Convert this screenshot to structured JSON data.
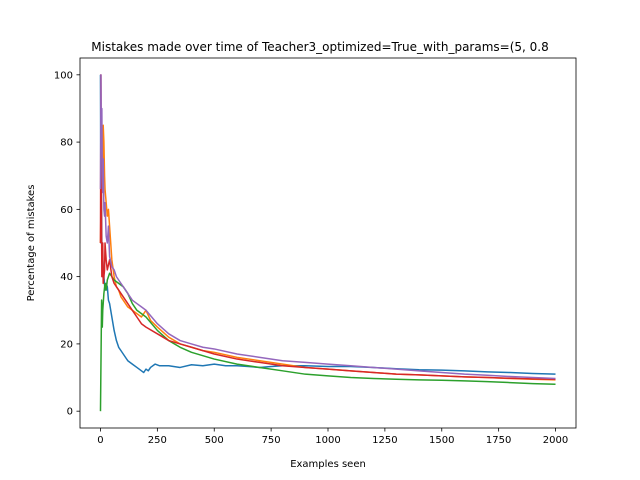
{
  "chart_data": {
    "type": "line",
    "title": "Mistakes made over time of Teacher3_optimized=True_with_params=(5, 0.8",
    "xlabel": "Examples seen",
    "ylabel": "Percentage of mistakes",
    "xlim": [
      -90,
      2090
    ],
    "ylim": [
      -5,
      105
    ],
    "xticks": [
      0,
      250,
      500,
      750,
      1000,
      1250,
      1500,
      1750,
      2000
    ],
    "yticks": [
      0,
      20,
      40,
      60,
      80,
      100
    ],
    "grid": false,
    "series": [
      {
        "color": "#1f77b4",
        "points": [
          [
            0,
            100
          ],
          [
            2,
            50
          ],
          [
            4,
            66
          ],
          [
            6,
            50
          ],
          [
            8,
            40
          ],
          [
            10,
            45
          ],
          [
            15,
            40
          ],
          [
            20,
            36
          ],
          [
            25,
            38
          ],
          [
            30,
            37
          ],
          [
            35,
            33
          ],
          [
            40,
            32
          ],
          [
            50,
            28
          ],
          [
            60,
            24
          ],
          [
            70,
            21
          ],
          [
            80,
            19
          ],
          [
            90,
            18
          ],
          [
            100,
            17
          ],
          [
            120,
            15
          ],
          [
            140,
            14
          ],
          [
            160,
            13
          ],
          [
            180,
            12
          ],
          [
            190,
            11.5
          ],
          [
            200,
            12.5
          ],
          [
            210,
            12
          ],
          [
            220,
            13
          ],
          [
            240,
            14
          ],
          [
            260,
            13.5
          ],
          [
            300,
            13.5
          ],
          [
            350,
            13
          ],
          [
            400,
            13.8
          ],
          [
            450,
            13.5
          ],
          [
            500,
            14
          ],
          [
            550,
            13.5
          ],
          [
            600,
            13.5
          ],
          [
            650,
            13.3
          ],
          [
            700,
            13
          ],
          [
            750,
            13.3
          ],
          [
            800,
            13.5
          ],
          [
            900,
            13.5
          ],
          [
            1000,
            13.3
          ],
          [
            1100,
            13.3
          ],
          [
            1200,
            13
          ],
          [
            1300,
            12.6
          ],
          [
            1400,
            12.3
          ],
          [
            1500,
            12.2
          ],
          [
            1600,
            12
          ],
          [
            1700,
            11.7
          ],
          [
            1800,
            11.5
          ],
          [
            1900,
            11.2
          ],
          [
            2000,
            11
          ]
        ]
      },
      {
        "color": "#ff7f0e",
        "points": [
          [
            0,
            50
          ],
          [
            3,
            66
          ],
          [
            5,
            75
          ],
          [
            8,
            80
          ],
          [
            10,
            72
          ],
          [
            12,
            85
          ],
          [
            15,
            80
          ],
          [
            18,
            70
          ],
          [
            20,
            66
          ],
          [
            25,
            62
          ],
          [
            30,
            58
          ],
          [
            35,
            60
          ],
          [
            40,
            55
          ],
          [
            50,
            45
          ],
          [
            60,
            40
          ],
          [
            70,
            37
          ],
          [
            80,
            36
          ],
          [
            90,
            34
          ],
          [
            100,
            33
          ],
          [
            120,
            31
          ],
          [
            140,
            30
          ],
          [
            160,
            29
          ],
          [
            180,
            28
          ],
          [
            200,
            30
          ],
          [
            220,
            27
          ],
          [
            250,
            25
          ],
          [
            300,
            22
          ],
          [
            350,
            20
          ],
          [
            400,
            19
          ],
          [
            450,
            18
          ],
          [
            500,
            17.5
          ],
          [
            600,
            16
          ],
          [
            700,
            15
          ],
          [
            800,
            14
          ],
          [
            900,
            13
          ],
          [
            1000,
            12.5
          ],
          [
            1100,
            12
          ],
          [
            1200,
            11.5
          ],
          [
            1300,
            11
          ],
          [
            1400,
            10.8
          ],
          [
            1500,
            10.5
          ],
          [
            1600,
            10.2
          ],
          [
            1700,
            10
          ],
          [
            1800,
            9.7
          ],
          [
            1900,
            9.5
          ],
          [
            2000,
            9.3
          ]
        ]
      },
      {
        "color": "#2ca02c",
        "points": [
          [
            0,
            0
          ],
          [
            3,
            20
          ],
          [
            5,
            33
          ],
          [
            8,
            25
          ],
          [
            10,
            30
          ],
          [
            15,
            35
          ],
          [
            20,
            38
          ],
          [
            25,
            36
          ],
          [
            30,
            39
          ],
          [
            35,
            40
          ],
          [
            40,
            41
          ],
          [
            50,
            40
          ],
          [
            60,
            39
          ],
          [
            80,
            38
          ],
          [
            100,
            37
          ],
          [
            120,
            35
          ],
          [
            140,
            32
          ],
          [
            160,
            30
          ],
          [
            180,
            29
          ],
          [
            200,
            28
          ],
          [
            250,
            24
          ],
          [
            300,
            21
          ],
          [
            350,
            19
          ],
          [
            400,
            17.5
          ],
          [
            450,
            16.5
          ],
          [
            500,
            15.5
          ],
          [
            600,
            14
          ],
          [
            700,
            13
          ],
          [
            800,
            12
          ],
          [
            900,
            11
          ],
          [
            1000,
            10.5
          ],
          [
            1100,
            10
          ],
          [
            1200,
            9.7
          ],
          [
            1300,
            9.5
          ],
          [
            1400,
            9.3
          ],
          [
            1500,
            9.2
          ],
          [
            1600,
            9
          ],
          [
            1700,
            8.8
          ],
          [
            1800,
            8.5
          ],
          [
            1900,
            8.2
          ],
          [
            2000,
            8
          ]
        ]
      },
      {
        "color": "#d62728",
        "points": [
          [
            0,
            50
          ],
          [
            2,
            100
          ],
          [
            4,
            66
          ],
          [
            6,
            40
          ],
          [
            8,
            45
          ],
          [
            10,
            50
          ],
          [
            12,
            38
          ],
          [
            15,
            40
          ],
          [
            18,
            42
          ],
          [
            20,
            50
          ],
          [
            25,
            45
          ],
          [
            30,
            42
          ],
          [
            40,
            45
          ],
          [
            50,
            40
          ],
          [
            60,
            38
          ],
          [
            70,
            37
          ],
          [
            80,
            36
          ],
          [
            90,
            35
          ],
          [
            100,
            34
          ],
          [
            120,
            32
          ],
          [
            140,
            30
          ],
          [
            160,
            28
          ],
          [
            180,
            26
          ],
          [
            200,
            25
          ],
          [
            250,
            23
          ],
          [
            300,
            21
          ],
          [
            350,
            20
          ],
          [
            400,
            19
          ],
          [
            450,
            18
          ],
          [
            500,
            17
          ],
          [
            600,
            15.5
          ],
          [
            700,
            14.5
          ],
          [
            800,
            13.5
          ],
          [
            900,
            13
          ],
          [
            1000,
            12.5
          ],
          [
            1100,
            12
          ],
          [
            1200,
            11.5
          ],
          [
            1300,
            11
          ],
          [
            1400,
            10.8
          ],
          [
            1500,
            10.5
          ],
          [
            1600,
            10.2
          ],
          [
            1700,
            10
          ],
          [
            1800,
            9.8
          ],
          [
            1900,
            9.6
          ],
          [
            2000,
            9.5
          ]
        ]
      },
      {
        "color": "#9467bd",
        "points": [
          [
            0,
            66
          ],
          [
            2,
            100
          ],
          [
            4,
            80
          ],
          [
            6,
            90
          ],
          [
            8,
            70
          ],
          [
            10,
            65
          ],
          [
            12,
            75
          ],
          [
            15,
            60
          ],
          [
            18,
            58
          ],
          [
            20,
            62
          ],
          [
            25,
            52
          ],
          [
            30,
            50
          ],
          [
            35,
            55
          ],
          [
            40,
            46
          ],
          [
            50,
            43
          ],
          [
            60,
            42
          ],
          [
            70,
            40
          ],
          [
            80,
            39
          ],
          [
            90,
            38
          ],
          [
            100,
            37
          ],
          [
            120,
            35
          ],
          [
            140,
            33
          ],
          [
            160,
            32
          ],
          [
            180,
            31
          ],
          [
            200,
            30
          ],
          [
            250,
            26
          ],
          [
            300,
            23
          ],
          [
            350,
            21
          ],
          [
            400,
            20
          ],
          [
            450,
            19
          ],
          [
            500,
            18.5
          ],
          [
            600,
            17
          ],
          [
            700,
            16
          ],
          [
            800,
            15
          ],
          [
            900,
            14.5
          ],
          [
            1000,
            14
          ],
          [
            1100,
            13.5
          ],
          [
            1200,
            13
          ],
          [
            1300,
            12.5
          ],
          [
            1400,
            12
          ],
          [
            1500,
            11.5
          ],
          [
            1600,
            11
          ],
          [
            1700,
            10.7
          ],
          [
            1800,
            10.3
          ],
          [
            1900,
            10
          ],
          [
            2000,
            9.7
          ]
        ]
      }
    ]
  }
}
